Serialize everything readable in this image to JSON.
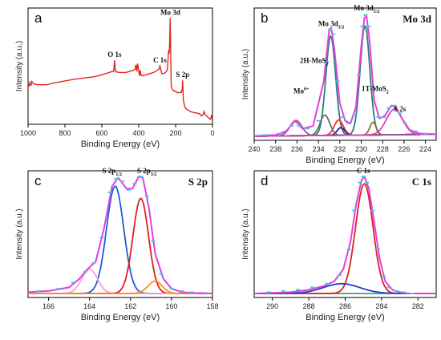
{
  "figure": {
    "panels": [
      {
        "id": "a",
        "letter": "a",
        "title": "",
        "xlabel": "Binding Energy (eV)",
        "ylabel": "Intensity (a.u.)",
        "xlim": [
          1000,
          0
        ],
        "xticks": [
          1000,
          800,
          600,
          400,
          200,
          0
        ],
        "annotations": [
          {
            "text": "O 1s",
            "x": 531,
            "y": 0.56
          },
          {
            "text": "C 1s",
            "x": 285,
            "y": 0.51
          },
          {
            "text": "Mo 3d",
            "x": 229,
            "y": 0.94
          },
          {
            "text": "S 2p",
            "x": 162,
            "y": 0.38
          }
        ]
      },
      {
        "id": "b",
        "letter": "b",
        "title": "Mo 3d",
        "xlabel": "Binding Energy (eV)",
        "ylabel": "Intensity (a.u.)",
        "xlim": [
          240,
          223
        ],
        "xticks": [
          240,
          238,
          236,
          234,
          232,
          230,
          228,
          226,
          224
        ],
        "annotations": [
          {
            "text": "Mo 3d",
            "sub": "3/2",
            "x": 232.8,
            "y": 0.86
          },
          {
            "text": "Mo 3d",
            "sub": "5/2",
            "x": 229.5,
            "y": 0.98
          },
          {
            "text": "2H-MoS",
            "sub": "2",
            "x": 234.4,
            "y": 0.57
          },
          {
            "text": "1T-MoS",
            "sub": "2",
            "x": 228.7,
            "y": 0.35
          },
          {
            "text": "Mo",
            "sup": "6+",
            "x": 235.6,
            "y": 0.33
          },
          {
            "text": "S 2s",
            "x": 226.4,
            "y": 0.19
          }
        ]
      },
      {
        "id": "c",
        "letter": "c",
        "title": "S 2p",
        "xlabel": "Binding Energy (eV)",
        "ylabel": "Intensity (a.u.)",
        "xlim": [
          167,
          158
        ],
        "xticks": [
          166,
          164,
          162,
          160,
          158
        ],
        "annotations": [
          {
            "text": "S 2p",
            "sub": "1/2",
            "x": 162.9,
            "y": 0.98
          },
          {
            "text": "S 2p",
            "sub": "3/2",
            "x": 161.2,
            "y": 0.98
          }
        ]
      },
      {
        "id": "d",
        "letter": "d",
        "title": "C 1s",
        "xlabel": "Binding Energy (eV)",
        "ylabel": "Intensity (a.u.)",
        "xlim": [
          291,
          281
        ],
        "xticks": [
          290,
          288,
          286,
          284,
          282
        ],
        "annotations": [
          {
            "text": "C 1s",
            "x": 285.0,
            "y": 0.98
          }
        ]
      }
    ]
  },
  "chart_data": [
    {
      "type": "line",
      "panel": "a",
      "title": "",
      "xlabel": "Binding Energy (eV)",
      "ylabel": "Intensity (a.u.)",
      "xlim": [
        1000,
        0
      ],
      "ylim": [
        0,
        1
      ],
      "series": [
        {
          "color": "#e2241c",
          "x": [
            1000,
            995,
            990,
            985,
            980,
            970,
            950,
            900,
            850,
            800,
            750,
            700,
            650,
            620,
            600,
            580,
            560,
            545,
            535,
            531,
            527,
            520,
            500,
            470,
            450,
            430,
            420,
            415,
            410,
            406,
            400,
            396,
            392,
            388,
            380,
            360,
            340,
            320,
            300,
            290,
            285,
            280,
            275,
            265,
            255,
            245,
            238,
            235,
            232,
            229,
            227,
            224,
            222,
            218,
            215,
            210,
            200,
            190,
            180,
            170,
            164,
            162,
            160,
            158,
            150,
            140,
            130,
            120,
            100,
            80,
            70,
            60,
            50,
            45,
            40,
            30,
            20,
            10,
            5,
            0
          ],
          "y": [
            0.32,
            0.33,
            0.36,
            0.33,
            0.37,
            0.35,
            0.34,
            0.34,
            0.36,
            0.375,
            0.39,
            0.4,
            0.41,
            0.42,
            0.43,
            0.44,
            0.45,
            0.46,
            0.46,
            0.56,
            0.47,
            0.455,
            0.45,
            0.45,
            0.46,
            0.47,
            0.48,
            0.52,
            0.46,
            0.53,
            0.47,
            0.42,
            0.47,
            0.43,
            0.42,
            0.43,
            0.44,
            0.45,
            0.47,
            0.48,
            0.51,
            0.48,
            0.44,
            0.44,
            0.45,
            0.47,
            0.65,
            0.62,
            0.72,
            0.94,
            0.66,
            0.34,
            0.32,
            0.3,
            0.29,
            0.29,
            0.28,
            0.27,
            0.27,
            0.27,
            0.3,
            0.38,
            0.3,
            0.2,
            0.14,
            0.12,
            0.11,
            0.1,
            0.09,
            0.085,
            0.08,
            0.06,
            0.075,
            0.1,
            0.07,
            0.06,
            0.04,
            0.03,
            0.07,
            0.03
          ]
        }
      ]
    },
    {
      "type": "line",
      "panel": "b",
      "title": "Mo 3d",
      "xlabel": "Binding Energy (eV)",
      "ylabel": "Intensity (a.u.)",
      "xlim": [
        240,
        223
      ],
      "ylim": [
        0,
        1
      ],
      "baseline": {
        "x0": 240,
        "y0": 0.02,
        "x1": 223,
        "y1": 0.035
      },
      "peaks": [
        {
          "name": "Mo 3d3/2 2H-MoS2",
          "color": "#2a7f76",
          "center": 232.85,
          "height": 0.78,
          "width": 0.45
        },
        {
          "name": "Mo 3d5/2 2H-MoS2",
          "color": "#2a7f76",
          "center": 229.65,
          "height": 0.86,
          "width": 0.45
        },
        {
          "name": "Mo 3d3/2 1T-MoS2",
          "color": "#ff2a2a",
          "center": 232.1,
          "height": 0.12,
          "width": 0.42
        },
        {
          "name": "Mo 3d5/2 1T-MoS2",
          "color": "#1f1f8a",
          "center": 231.9,
          "height": 0.06,
          "width": 0.35
        },
        {
          "name": "1T-MoS2 5/2",
          "color": "#8c7a2a",
          "center": 228.9,
          "height": 0.1,
          "width": 0.3
        },
        {
          "name": "Mo6+",
          "color": "#6b6b6b",
          "center": 233.4,
          "height": 0.16,
          "width": 0.45
        },
        {
          "name": "Mo6+ b",
          "color": "#a14e9a",
          "center": 236.1,
          "height": 0.12,
          "width": 0.55
        },
        {
          "name": "S 2s",
          "color": "#e040c0",
          "center": 226.9,
          "height": 0.2,
          "width": 0.75
        }
      ],
      "envelope": {
        "color": "#e040e0",
        "x": [
          240,
          238,
          237,
          236.2,
          235.5,
          234.5,
          233.5,
          233.0,
          232.8,
          232.5,
          232.0,
          231.5,
          231.0,
          230.5,
          230.0,
          229.7,
          229.5,
          229.2,
          228.8,
          228.3,
          227.8,
          227.2,
          226.8,
          226.2,
          225.5,
          224.5,
          223
        ],
        "y": [
          0.02,
          0.03,
          0.06,
          0.14,
          0.08,
          0.1,
          0.45,
          0.85,
          0.87,
          0.7,
          0.28,
          0.14,
          0.12,
          0.25,
          0.72,
          0.95,
          0.96,
          0.75,
          0.3,
          0.16,
          0.18,
          0.26,
          0.25,
          0.16,
          0.07,
          0.04,
          0.035
        ]
      },
      "data_points": {
        "color": "#42c7e8",
        "x": [
          239,
          237.5,
          236.5,
          235.8,
          235,
          234,
          233.2,
          232.9,
          232.6,
          232.2,
          231.7,
          231.2,
          230.7,
          230.2,
          229.9,
          229.6,
          229.3,
          228.9,
          228.4,
          227.9,
          227.4,
          226.9,
          226.4,
          225.9,
          225,
          224
        ],
        "y": [
          0.03,
          0.04,
          0.1,
          0.1,
          0.08,
          0.14,
          0.6,
          0.86,
          0.82,
          0.45,
          0.17,
          0.12,
          0.18,
          0.5,
          0.88,
          0.97,
          0.88,
          0.4,
          0.17,
          0.17,
          0.24,
          0.26,
          0.2,
          0.12,
          0.06,
          0.04
        ]
      }
    },
    {
      "type": "line",
      "panel": "c",
      "title": "S 2p",
      "xlabel": "Binding Energy (eV)",
      "ylabel": "Intensity (a.u.)",
      "xlim": [
        167,
        158
      ],
      "ylim": [
        0,
        1
      ],
      "baseline": {
        "x0": 167,
        "y0": 0.02,
        "x1": 158,
        "y1": 0.02
      },
      "peaks": [
        {
          "name": "S 2p1/2",
          "color": "#1f5bd6",
          "center": 162.75,
          "height": 0.88,
          "width": 0.42
        },
        {
          "name": "S 2p3/2",
          "color": "#e41d1d",
          "center": 161.5,
          "height": 0.78,
          "width": 0.38
        },
        {
          "name": "satellite",
          "color": "#ff9bd8",
          "center": 164.0,
          "height": 0.2,
          "width": 0.38
        },
        {
          "name": "S 2p low",
          "color": "#ff8c1a",
          "center": 160.8,
          "height": 0.1,
          "width": 0.35
        }
      ],
      "envelope": {
        "color": "#e040e0",
        "x": [
          167,
          166,
          165,
          164.5,
          164.1,
          163.7,
          163.3,
          162.9,
          162.6,
          162.2,
          161.9,
          161.6,
          161.4,
          161.1,
          160.8,
          160.4,
          160.0,
          159.5,
          159,
          158
        ],
        "y": [
          0.03,
          0.04,
          0.07,
          0.14,
          0.22,
          0.28,
          0.55,
          0.9,
          0.97,
          0.88,
          0.88,
          0.98,
          0.97,
          0.72,
          0.35,
          0.14,
          0.06,
          0.03,
          0.025,
          0.02
        ]
      },
      "data_points": {
        "color": "#42c7e8",
        "x": [
          166.5,
          165.5,
          164.8,
          164.2,
          163.8,
          163.4,
          163,
          162.7,
          162.4,
          162.1,
          161.8,
          161.5,
          161.2,
          160.9,
          160.5,
          160,
          159.5,
          159
        ],
        "y": [
          0.04,
          0.06,
          0.11,
          0.2,
          0.27,
          0.48,
          0.85,
          0.96,
          0.94,
          0.87,
          0.92,
          0.98,
          0.82,
          0.45,
          0.18,
          0.06,
          0.04,
          0.03
        ]
      }
    },
    {
      "type": "line",
      "panel": "d",
      "title": "C 1s",
      "xlabel": "Binding Energy (eV)",
      "ylabel": "Intensity (a.u.)",
      "xlim": [
        291,
        281
      ],
      "ylim": [
        0,
        1
      ],
      "baseline": {
        "x0": 291,
        "y0": 0.02,
        "x1": 281,
        "y1": 0.02
      },
      "peaks": [
        {
          "name": "C 1s main",
          "color": "#e41d1d",
          "center": 284.95,
          "height": 0.9,
          "width": 0.48
        },
        {
          "name": "C 1s broad",
          "color": "#2040c8",
          "center": 286.2,
          "height": 0.08,
          "width": 1.0
        }
      ],
      "envelope": {
        "color": "#e040e0",
        "x": [
          291,
          289,
          288,
          287.2,
          286.6,
          286.1,
          285.7,
          285.4,
          285.1,
          284.95,
          284.7,
          284.4,
          284.1,
          283.8,
          283.4,
          283.0,
          282.5,
          281
        ],
        "y": [
          0.02,
          0.03,
          0.05,
          0.08,
          0.12,
          0.22,
          0.45,
          0.75,
          0.95,
          0.98,
          0.88,
          0.6,
          0.3,
          0.12,
          0.05,
          0.03,
          0.02,
          0.02
        ]
      },
      "data_points": {
        "color": "#42c7e8",
        "x": [
          290.2,
          289.4,
          288.6,
          287.8,
          287,
          286.3,
          285.8,
          285.5,
          285.2,
          285,
          284.8,
          284.5,
          284.2,
          283.9,
          283.6,
          283.2,
          282.8,
          282.3
        ],
        "y": [
          0.03,
          0.04,
          0.05,
          0.07,
          0.1,
          0.17,
          0.38,
          0.7,
          0.93,
          0.98,
          0.93,
          0.7,
          0.38,
          0.16,
          0.07,
          0.04,
          0.03,
          0.02
        ]
      }
    }
  ]
}
